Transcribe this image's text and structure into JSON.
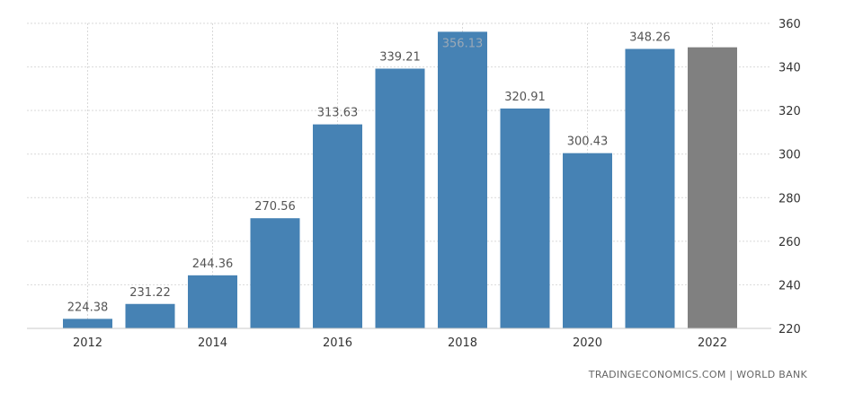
{
  "chart_data": {
    "type": "bar",
    "categories": [
      "2012",
      "2013",
      "2014",
      "2015",
      "2016",
      "2017",
      "2018",
      "2019",
      "2020",
      "2021",
      "2022"
    ],
    "values": [
      224.38,
      231.22,
      244.36,
      270.56,
      313.63,
      339.21,
      356.13,
      320.91,
      300.43,
      348.26,
      349
    ],
    "value_labels": [
      "224.38",
      "231.22",
      "244.36",
      "270.56",
      "313.63",
      "339.21",
      "356.13",
      "320.91",
      "300.43",
      "348.26",
      ""
    ],
    "x_tick_labels": [
      "2012",
      "",
      "2014",
      "",
      "2016",
      "",
      "2018",
      "",
      "2020",
      "",
      "2022"
    ],
    "y_ticks": [
      220,
      240,
      260,
      280,
      300,
      320,
      340,
      360
    ],
    "ylim": [
      220,
      360
    ],
    "y_axis_side": "right",
    "grid": true,
    "bar_colors": [
      "#4682b4",
      "#4682b4",
      "#4682b4",
      "#4682b4",
      "#4682b4",
      "#4682b4",
      "#4682b4",
      "#4682b4",
      "#4682b4",
      "#4682b4",
      "#808080"
    ],
    "title": "",
    "xlabel": "",
    "ylabel": ""
  },
  "source_text": "TRADINGECONOMICS.COM | WORLD BANK"
}
